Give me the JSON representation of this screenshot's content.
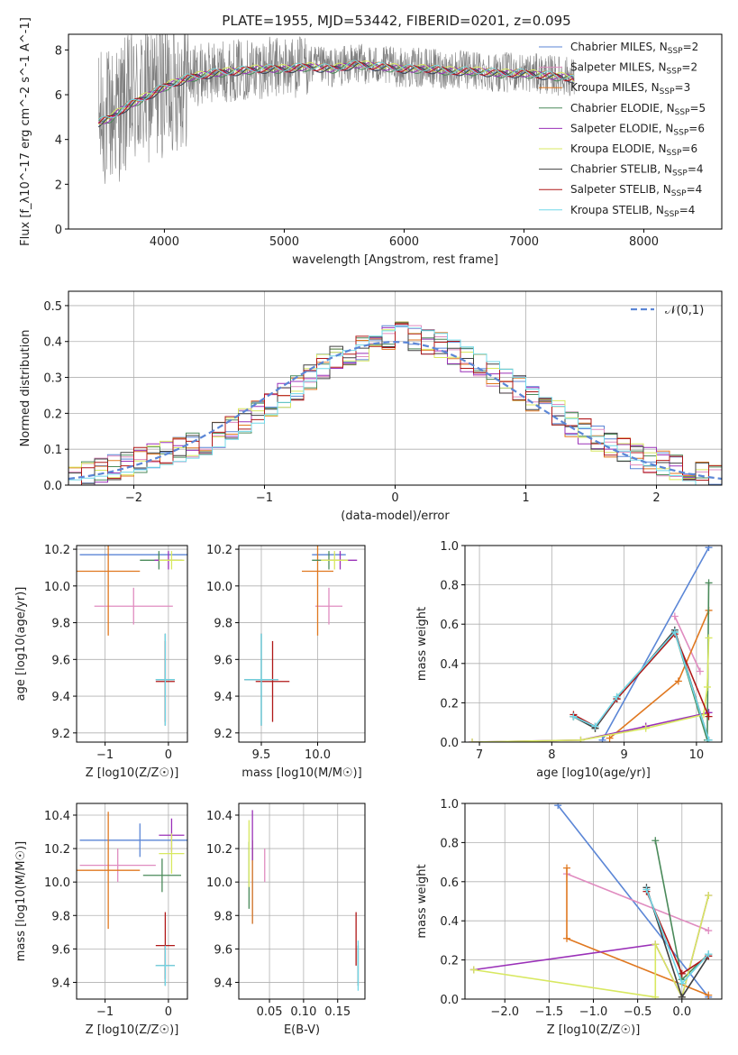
{
  "title": "PLATE=1955, MJD=53442, FIBERID=0201, z=0.095",
  "colors": {
    "Chabrier MILES": "#5b86d6",
    "Salpeter MILES": "#e08cc0",
    "Kroupa MILES": "#e07820",
    "Chabrier ELODIE": "#4a8a5a",
    "Salpeter ELODIE": "#9a30b8",
    "Kroupa ELODIE": "#d8e860",
    "Chabrier STELIB": "#404040",
    "Salpeter STELIB": "#b01818",
    "Kroupa STELIB": "#70d8e8",
    "data": "#808080",
    "gauss": "#5b86d6"
  },
  "chart_data": [
    {
      "panel": "spectrum",
      "type": "line",
      "xlabel": "wavelength [Angstrom, rest frame]",
      "ylabel": "Flux [f_λ10^-17 erg cm^-2 s^-1 A^-1]",
      "xlim": [
        3200,
        8650
      ],
      "ylim": [
        0,
        8.7
      ],
      "xticks": [
        "4000",
        "5000",
        "6000",
        "7000",
        "8000"
      ],
      "yticks": [
        "0",
        "2",
        "4",
        "6",
        "8"
      ],
      "legend_position": "upper right",
      "legend": [
        {
          "model": "Chabrier MILES",
          "nssp": 2
        },
        {
          "model": "Salpeter MILES",
          "nssp": 2
        },
        {
          "model": "Kroupa MILES",
          "nssp": 3
        },
        {
          "model": "Chabrier ELODIE",
          "nssp": 5
        },
        {
          "model": "Salpeter ELODIE",
          "nssp": 6
        },
        {
          "model": "Kroupa ELODIE",
          "nssp": 6
        },
        {
          "model": "Chabrier STELIB",
          "nssp": 4
        },
        {
          "model": "Salpeter STELIB",
          "nssp": 4
        },
        {
          "model": "Kroupa STELIB",
          "nssp": 4
        }
      ],
      "model_curve": {
        "x": [
          3450,
          3550,
          3650,
          3750,
          3900,
          4000,
          4200,
          4400,
          4600,
          4800,
          5000,
          5200,
          5400,
          5600,
          5800,
          6000,
          6200,
          6400,
          6600,
          6800,
          7000,
          7200,
          7400,
          7420
        ],
        "y": [
          4.8,
          5.0,
          5.4,
          5.7,
          6.1,
          6.4,
          6.8,
          7.0,
          7.1,
          7.2,
          7.2,
          7.3,
          7.2,
          7.4,
          7.3,
          7.2,
          7.2,
          7.1,
          7.1,
          7.0,
          7.0,
          6.9,
          6.8,
          6.7
        ]
      },
      "data_curve_range": [
        3450,
        7420
      ]
    },
    {
      "panel": "residuals",
      "type": "step",
      "xlabel": "(data-model)/error",
      "ylabel": "Normed distribution",
      "xlim": [
        -2.5,
        2.5
      ],
      "ylim": [
        0,
        0.54
      ],
      "xticks": [
        "−2",
        "−1",
        "0",
        "1",
        "2"
      ],
      "yticks": [
        "0.0",
        "0.1",
        "0.2",
        "0.3",
        "0.4",
        "0.5"
      ],
      "legend": "𝒩(0,1)",
      "legend_position": "upper right",
      "bin_edges": [
        -2.5,
        -2.4,
        -2.3,
        -2.2,
        -2.1,
        -2.0,
        -1.9,
        -1.8,
        -1.7,
        -1.6,
        -1.5,
        -1.4,
        -1.3,
        -1.2,
        -1.1,
        -1.0,
        -0.9,
        -0.8,
        -0.7,
        -0.6,
        -0.5,
        -0.4,
        -0.3,
        -0.2,
        -0.1,
        0.0,
        0.1,
        0.2,
        0.3,
        0.4,
        0.5,
        0.6,
        0.7,
        0.8,
        0.9,
        1.0,
        1.1,
        1.2,
        1.3,
        1.4,
        1.5,
        1.6,
        1.7,
        1.8,
        1.9,
        2.0,
        2.1,
        2.2,
        2.3,
        2.4,
        2.5
      ],
      "histogram": [
        0.02,
        0.03,
        0.04,
        0.05,
        0.06,
        0.07,
        0.08,
        0.09,
        0.1,
        0.11,
        0.12,
        0.14,
        0.16,
        0.18,
        0.2,
        0.22,
        0.25,
        0.27,
        0.3,
        0.33,
        0.36,
        0.37,
        0.38,
        0.4,
        0.41,
        0.42,
        0.41,
        0.4,
        0.39,
        0.37,
        0.35,
        0.33,
        0.31,
        0.29,
        0.27,
        0.24,
        0.22,
        0.2,
        0.17,
        0.15,
        0.13,
        0.11,
        0.1,
        0.08,
        0.07,
        0.06,
        0.05,
        0.04,
        0.03,
        0.02
      ]
    },
    {
      "panel": "age_vs_Z",
      "type": "errorbar",
      "xlabel": "Z [log10(Z/Z☉)]",
      "ylabel": "age [log10(age/yr)]",
      "xlim": [
        -1.45,
        0.3
      ],
      "ylim": [
        9.15,
        10.22
      ],
      "xticks": [
        "−1",
        "0"
      ],
      "yticks": [
        "9.2",
        "9.4",
        "9.6",
        "9.8",
        "10.0",
        "10.2"
      ],
      "points": [
        {
          "model": "Chabrier MILES",
          "x": -0.45,
          "y": 10.17,
          "xerr": 0.95,
          "yerr": 0.0
        },
        {
          "model": "Salpeter MILES",
          "x": -0.55,
          "y": 9.89,
          "xerr": 0.62,
          "yerr": 0.1
        },
        {
          "model": "Kroupa MILES",
          "x": -0.95,
          "y": 10.08,
          "xerr": 0.5,
          "yerr": 0.35
        },
        {
          "model": "Chabrier ELODIE",
          "x": -0.15,
          "y": 10.14,
          "xerr": 0.3,
          "yerr": 0.05
        },
        {
          "model": "Salpeter ELODIE",
          "x": 0.0,
          "y": 10.14,
          "xerr": 0.22,
          "yerr": 0.05
        },
        {
          "model": "Kroupa ELODIE",
          "x": 0.05,
          "y": 10.14,
          "xerr": 0.2,
          "yerr": 0.05
        },
        {
          "model": "Chabrier STELIB",
          "x": -0.05,
          "y": 9.49,
          "xerr": 0.15,
          "yerr": 0.25
        },
        {
          "model": "Salpeter STELIB",
          "x": -0.05,
          "y": 9.48,
          "xerr": 0.15,
          "yerr": 0.22
        },
        {
          "model": "Kroupa STELIB",
          "x": -0.05,
          "y": 9.49,
          "xerr": 0.15,
          "yerr": 0.25
        }
      ]
    },
    {
      "panel": "age_vs_mass",
      "type": "errorbar",
      "xlabel": "mass [log10(M/M☉)]",
      "ylabel": "",
      "xlim": [
        9.3,
        10.42
      ],
      "ylim": [
        9.15,
        10.22
      ],
      "xticks": [
        "9.5",
        "10.0"
      ],
      "yticks": [
        "9.2",
        "9.4",
        "9.6",
        "9.8",
        "10.0",
        "10.2"
      ],
      "points": [
        {
          "model": "Chabrier MILES",
          "x": 10.1,
          "y": 10.17,
          "xerr": 0.15,
          "yerr": 0.0
        },
        {
          "model": "Salpeter MILES",
          "x": 10.1,
          "y": 9.89,
          "xerr": 0.12,
          "yerr": 0.1
        },
        {
          "model": "Kroupa MILES",
          "x": 10.0,
          "y": 10.08,
          "xerr": 0.14,
          "yerr": 0.35
        },
        {
          "model": "Chabrier ELODIE",
          "x": 10.1,
          "y": 10.14,
          "xerr": 0.15,
          "yerr": 0.05
        },
        {
          "model": "Salpeter ELODIE",
          "x": 10.2,
          "y": 10.14,
          "xerr": 0.15,
          "yerr": 0.05
        },
        {
          "model": "Kroupa ELODIE",
          "x": 10.15,
          "y": 10.14,
          "xerr": 0.12,
          "yerr": 0.05
        },
        {
          "model": "Chabrier STELIB",
          "x": 9.5,
          "y": 9.49,
          "xerr": 0.15,
          "yerr": 0.25
        },
        {
          "model": "Salpeter STELIB",
          "x": 9.6,
          "y": 9.48,
          "xerr": 0.15,
          "yerr": 0.22
        },
        {
          "model": "Kroupa STELIB",
          "x": 9.5,
          "y": 9.49,
          "xerr": 0.15,
          "yerr": 0.25
        }
      ]
    },
    {
      "panel": "weight_vs_age",
      "type": "line",
      "xlabel": "age [log10(age/yr)]",
      "ylabel": "mass weight",
      "xlim": [
        6.8,
        10.35
      ],
      "ylim": [
        0,
        1.0
      ],
      "xticks": [
        "7",
        "8",
        "9",
        "10"
      ],
      "yticks": [
        "0.0",
        "0.2",
        "0.4",
        "0.6",
        "0.8",
        "1.0"
      ],
      "series": [
        {
          "name": "Chabrier MILES",
          "x": [
            8.7,
            10.17
          ],
          "y": [
            0.01,
            0.99
          ]
        },
        {
          "name": "Salpeter MILES",
          "x": [
            9.7,
            10.05
          ],
          "y": [
            0.64,
            0.36
          ]
        },
        {
          "name": "Kroupa MILES",
          "x": [
            8.8,
            9.75,
            10.17
          ],
          "y": [
            0.02,
            0.31,
            0.67
          ]
        },
        {
          "name": "Chabrier ELODIE",
          "x": [
            8.3,
            8.6,
            8.9,
            9.7,
            10.15,
            10.17
          ],
          "y": [
            0.13,
            0.07,
            0.23,
            0.56,
            0.01,
            0.81
          ]
        },
        {
          "name": "Salpeter ELODIE",
          "x": [
            6.9,
            8.4,
            9.3,
            10.17
          ],
          "y": [
            0.0,
            0.01,
            0.08,
            0.15
          ]
        },
        {
          "name": "Kroupa ELODIE",
          "x": [
            6.9,
            8.4,
            9.3,
            10.1,
            10.15,
            10.17
          ],
          "y": [
            0.0,
            0.01,
            0.07,
            0.14,
            0.28,
            0.53
          ]
        },
        {
          "name": "Chabrier STELIB",
          "x": [
            8.3,
            8.6,
            8.9,
            9.7,
            10.17
          ],
          "y": [
            0.13,
            0.07,
            0.22,
            0.57,
            0.01
          ]
        },
        {
          "name": "Salpeter STELIB",
          "x": [
            8.3,
            8.6,
            8.9,
            9.7,
            10.17
          ],
          "y": [
            0.14,
            0.08,
            0.22,
            0.55,
            0.13
          ]
        },
        {
          "name": "Kroupa STELIB",
          "x": [
            8.3,
            8.6,
            8.9,
            9.7,
            10.17
          ],
          "y": [
            0.13,
            0.08,
            0.23,
            0.56,
            0.01
          ]
        }
      ]
    },
    {
      "panel": "mass_vs_Z",
      "type": "errorbar",
      "xlabel": "Z [log10(Z/Z☉)]",
      "ylabel": "mass [log10(M/M☉)]",
      "xlim": [
        -1.45,
        0.3
      ],
      "ylim": [
        9.3,
        10.47
      ],
      "xticks": [
        "−1",
        "0"
      ],
      "yticks": [
        "9.4",
        "9.6",
        "9.8",
        "10.0",
        "10.2",
        "10.4"
      ],
      "points": [
        {
          "model": "Chabrier MILES",
          "x": -0.45,
          "y": 10.25,
          "xerr": 0.95,
          "yerr": 0.1
        },
        {
          "model": "Salpeter MILES",
          "x": -0.8,
          "y": 10.1,
          "xerr": 0.6,
          "yerr": 0.1
        },
        {
          "model": "Kroupa MILES",
          "x": -0.95,
          "y": 10.07,
          "xerr": 0.5,
          "yerr": 0.35
        },
        {
          "model": "Chabrier ELODIE",
          "x": -0.1,
          "y": 10.04,
          "xerr": 0.3,
          "yerr": 0.1
        },
        {
          "model": "Salpeter ELODIE",
          "x": 0.05,
          "y": 10.28,
          "xerr": 0.2,
          "yerr": 0.1
        },
        {
          "model": "Kroupa ELODIE",
          "x": 0.05,
          "y": 10.17,
          "xerr": 0.2,
          "yerr": 0.12
        },
        {
          "model": "Chabrier STELIB",
          "x": -0.05,
          "y": 9.5,
          "xerr": 0.15,
          "yerr": 0.12
        },
        {
          "model": "Salpeter STELIB",
          "x": -0.05,
          "y": 9.62,
          "xerr": 0.15,
          "yerr": 0.2
        },
        {
          "model": "Kroupa STELIB",
          "x": -0.05,
          "y": 9.5,
          "xerr": 0.15,
          "yerr": 0.12
        }
      ]
    },
    {
      "panel": "mass_vs_ebv",
      "type": "errorbar",
      "xlabel": "E(B-V)",
      "ylabel": "",
      "xlim": [
        0.005,
        0.19
      ],
      "ylim": [
        9.3,
        10.47
      ],
      "xticks": [
        "0.05",
        "0.10",
        "0.15"
      ],
      "yticks": [
        "9.4",
        "9.6",
        "9.8",
        "10.0",
        "10.2",
        "10.4"
      ],
      "points": [
        {
          "model": "Chabrier MILES",
          "x": 0.025,
          "y": 10.0,
          "xerr": 0,
          "yerr": 0.25
        },
        {
          "model": "Salpeter MILES",
          "x": 0.043,
          "y": 10.1,
          "xerr": 0,
          "yerr": 0.1
        },
        {
          "model": "Kroupa MILES",
          "x": 0.025,
          "y": 10.0,
          "xerr": 0,
          "yerr": 0.25
        },
        {
          "model": "Chabrier ELODIE",
          "x": 0.02,
          "y": 10.04,
          "xerr": 0,
          "yerr": 0.2
        },
        {
          "model": "Salpeter ELODIE",
          "x": 0.025,
          "y": 10.28,
          "xerr": 0,
          "yerr": 0.15
        },
        {
          "model": "Kroupa ELODIE",
          "x": 0.02,
          "y": 10.17,
          "xerr": 0,
          "yerr": 0.2
        },
        {
          "model": "Chabrier STELIB",
          "x": 0.18,
          "y": 9.5,
          "xerr": 0,
          "yerr": 0.12
        },
        {
          "model": "Salpeter STELIB",
          "x": 0.177,
          "y": 9.66,
          "xerr": 0,
          "yerr": 0.16
        },
        {
          "model": "Kroupa STELIB",
          "x": 0.18,
          "y": 9.5,
          "xerr": 0,
          "yerr": 0.15
        }
      ]
    },
    {
      "panel": "weight_vs_Z",
      "type": "line",
      "xlabel": "Z [log10(Z/Z☉)]",
      "ylabel": "mass weight",
      "xlim": [
        -2.45,
        0.45
      ],
      "ylim": [
        0,
        1.0
      ],
      "xticks": [
        "−2.0",
        "−1.5",
        "−1.0",
        "−0.5",
        "0.0"
      ],
      "yticks": [
        "0.0",
        "0.2",
        "0.4",
        "0.6",
        "0.8",
        "1.0"
      ],
      "series": [
        {
          "name": "Chabrier MILES",
          "x": [
            -1.4,
            0.3
          ],
          "y": [
            0.99,
            0.01
          ]
        },
        {
          "name": "Salpeter MILES",
          "x": [
            -1.3,
            0.3
          ],
          "y": [
            0.64,
            0.35
          ]
        },
        {
          "name": "Kroupa MILES",
          "x": [
            -1.3,
            -1.3,
            0.3
          ],
          "y": [
            0.67,
            0.31,
            0.02
          ]
        },
        {
          "name": "Chabrier ELODIE",
          "x": [
            -0.3,
            0.0,
            0.3
          ],
          "y": [
            0.81,
            0.1,
            0.23
          ]
        },
        {
          "name": "Salpeter ELODIE",
          "x": [
            -2.35,
            -0.3,
            0.0,
            0.3
          ],
          "y": [
            0.15,
            0.28,
            0.01,
            0.53
          ]
        },
        {
          "name": "Kroupa ELODIE",
          "x": [
            -2.35,
            -0.3,
            -0.3,
            0.0,
            0.3
          ],
          "y": [
            0.15,
            0.01,
            0.28,
            0.01,
            0.53
          ]
        },
        {
          "name": "Chabrier STELIB",
          "x": [
            -0.4,
            0.0,
            0.3
          ],
          "y": [
            0.57,
            0.01,
            0.22
          ]
        },
        {
          "name": "Salpeter STELIB",
          "x": [
            -0.4,
            0.0,
            0.3
          ],
          "y": [
            0.55,
            0.13,
            0.22
          ]
        },
        {
          "name": "Kroupa STELIB",
          "x": [
            -0.4,
            0.0,
            0.3
          ],
          "y": [
            0.56,
            0.08,
            0.23
          ]
        }
      ]
    }
  ]
}
